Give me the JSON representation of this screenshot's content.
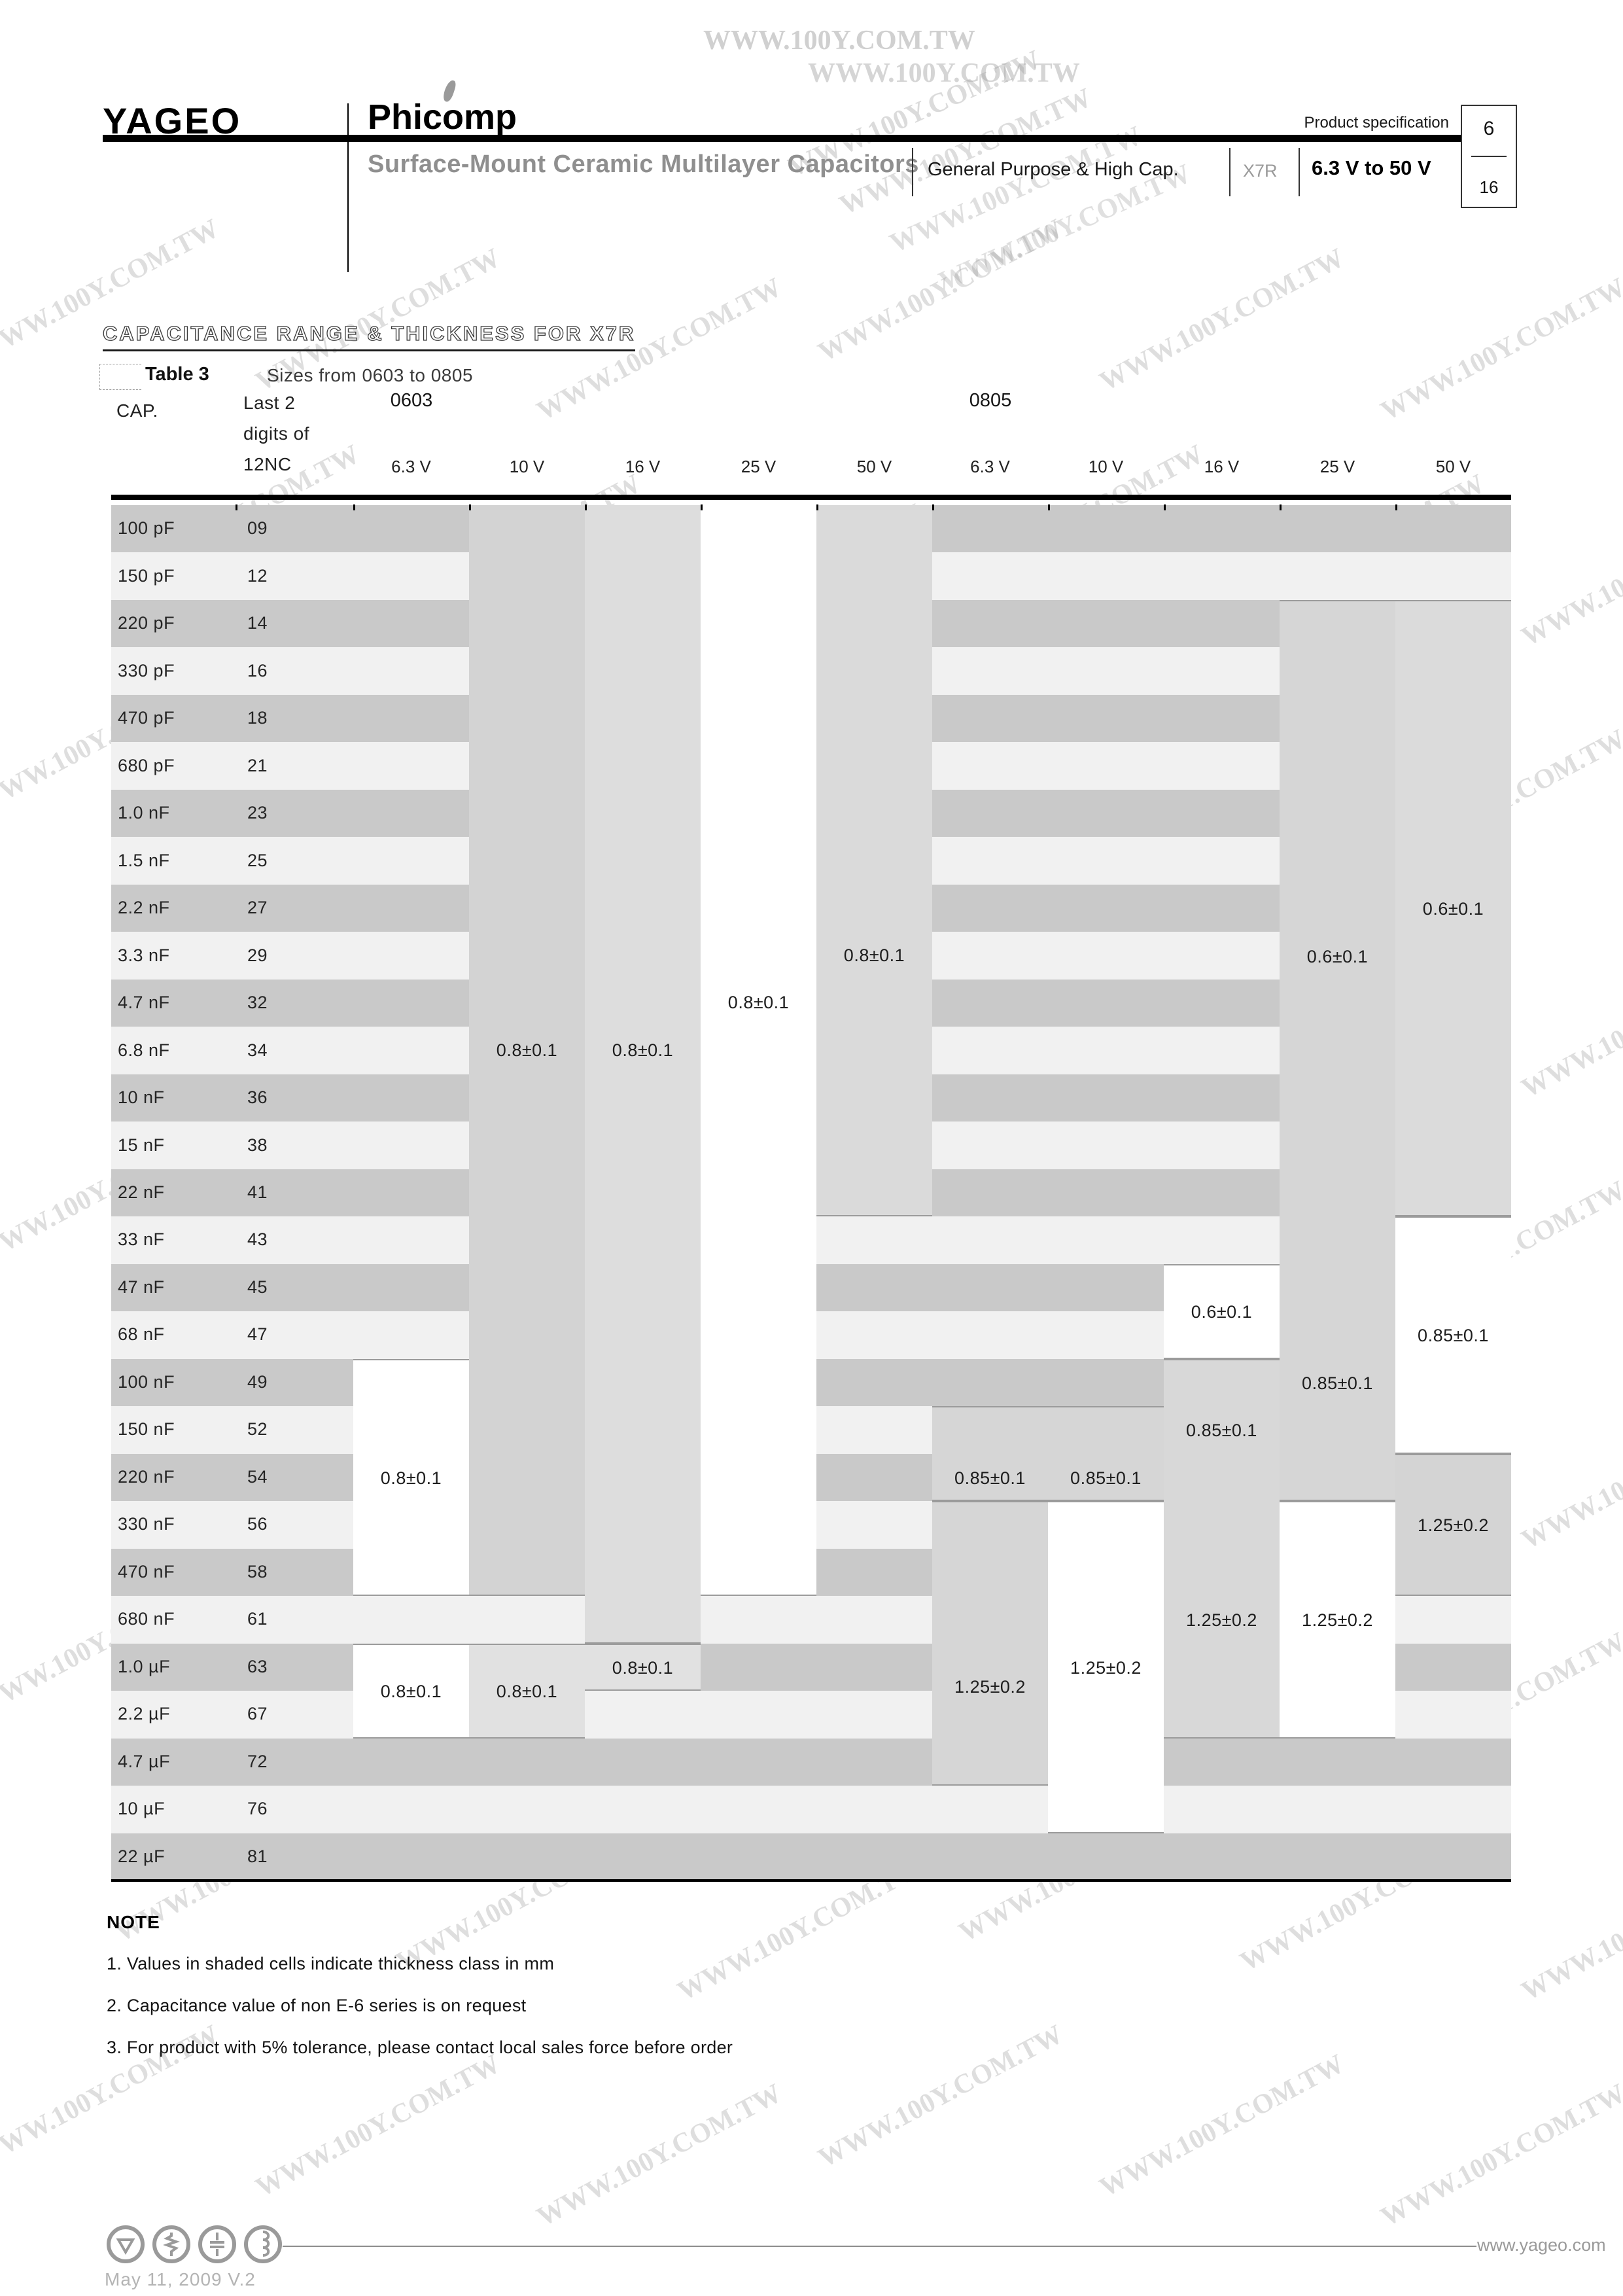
{
  "header": {
    "brand": "YAGEO",
    "brand2": "Phicomp",
    "product_spec": "Product specification",
    "page_number": "6",
    "page_total": "16",
    "title": "Surface-Mount Ceramic Multilayer Capacitors",
    "subtitle": "General Purpose & High Cap.",
    "series": "X7R",
    "voltage_range": "6.3 V to 50 V"
  },
  "section": {
    "heading": "CAPACITANCE RANGE & THICKNESS FOR X7R",
    "table_label": "Table 3",
    "table_caption": "Sizes from 0603 to 0805"
  },
  "table": {
    "col_cap_header": "CAP.",
    "col_code_header_lines": [
      "Last 2",
      "digits of",
      "12NC"
    ],
    "size_groups": [
      "0603",
      "0805"
    ],
    "voltages": [
      "6.3 V",
      "10 V",
      "16 V",
      "25 V",
      "50 V",
      "6.3 V",
      "10 V",
      "16 V",
      "25 V",
      "50 V"
    ],
    "rows": [
      {
        "cap": "100 pF",
        "code": "09"
      },
      {
        "cap": "150 pF",
        "code": "12"
      },
      {
        "cap": "220 pF",
        "code": "14"
      },
      {
        "cap": "330 pF",
        "code": "16"
      },
      {
        "cap": "470 pF",
        "code": "18"
      },
      {
        "cap": "680 pF",
        "code": "21"
      },
      {
        "cap": "1.0 nF",
        "code": "23"
      },
      {
        "cap": "1.5 nF",
        "code": "25"
      },
      {
        "cap": "2.2 nF",
        "code": "27"
      },
      {
        "cap": "3.3 nF",
        "code": "29"
      },
      {
        "cap": "4.7 nF",
        "code": "32"
      },
      {
        "cap": "6.8 nF",
        "code": "34"
      },
      {
        "cap": "10 nF",
        "code": "36"
      },
      {
        "cap": "15 nF",
        "code": "38"
      },
      {
        "cap": "22 nF",
        "code": "41"
      },
      {
        "cap": "33 nF",
        "code": "43"
      },
      {
        "cap": "47 nF",
        "code": "45"
      },
      {
        "cap": "68 nF",
        "code": "47"
      },
      {
        "cap": "100 nF",
        "code": "49"
      },
      {
        "cap": "150 nF",
        "code": "52"
      },
      {
        "cap": "220 nF",
        "code": "54"
      },
      {
        "cap": "330 nF",
        "code": "56"
      },
      {
        "cap": "470 nF",
        "code": "58"
      },
      {
        "cap": "680 nF",
        "code": "61"
      },
      {
        "cap": "1.0 µF",
        "code": "63"
      },
      {
        "cap": "2.2 µF",
        "code": "67"
      },
      {
        "cap": "4.7 µF",
        "code": "72"
      },
      {
        "cap": "10 µF",
        "code": "76"
      },
      {
        "cap": "22 µF",
        "code": "81"
      }
    ],
    "zebra_dark": "#c9c9c9",
    "zebra_light": "#f1f1f1",
    "border_color": "#9b9b9b",
    "blocks": [
      {
        "col": 0,
        "r0": 18,
        "r1": 22,
        "fill": "#ffffff",
        "labels": [
          {
            "text": "0.8±0.1"
          }
        ]
      },
      {
        "col": 0,
        "r0": 24,
        "r1": 25,
        "fill": "#ffffff",
        "labels": [
          {
            "text": "0.8±0.1"
          }
        ]
      },
      {
        "col": 1,
        "r0": 0,
        "r1": 22,
        "fill": "#d3d3d3",
        "labels": [
          {
            "text": "0.8±0.1",
            "row": 11
          }
        ]
      },
      {
        "col": 1,
        "r0": 24,
        "r1": 25,
        "fill": "#e1e1e1",
        "labels": [
          {
            "text": "0.8±0.1"
          }
        ]
      },
      {
        "col": 2,
        "r0": 0,
        "r1": 23,
        "fill": "#dddddd",
        "labels": [
          {
            "text": "0.8±0.1",
            "row": 11
          }
        ]
      },
      {
        "col": 2,
        "r0": 24,
        "r1": 24,
        "fill": "#e1e1e1",
        "labels": [
          {
            "text": "0.8±0.1"
          }
        ]
      },
      {
        "col": 3,
        "r0": 0,
        "r1": 22,
        "fill": "#ffffff",
        "labels": [
          {
            "text": "0.8±0.1",
            "row": 10
          }
        ]
      },
      {
        "col": 4,
        "r0": 0,
        "r1": 14,
        "fill": "#dadada",
        "labels": [
          {
            "text": "0.8±0.1",
            "row": 9
          }
        ]
      },
      {
        "col": 5,
        "r0": 19,
        "r1": 20,
        "fill": "#d6d6d6",
        "labels": [
          {
            "text": "0.85±0.1",
            "row": 20
          }
        ]
      },
      {
        "col": 5,
        "r0": 21,
        "r1": 26,
        "fill": "#d6d6d6",
        "labels": [
          {
            "text": "1.25±0.2",
            "row": 24.4
          }
        ]
      },
      {
        "col": 6,
        "r0": 19,
        "r1": 20,
        "fill": "#d6d6d6",
        "labels": [
          {
            "text": "0.85±0.1",
            "row": 20
          }
        ]
      },
      {
        "col": 6,
        "r0": 21,
        "r1": 27,
        "fill": "#ffffff",
        "labels": [
          {
            "text": "1.25±0.2",
            "row": 24
          }
        ]
      },
      {
        "col": 7,
        "r0": 16,
        "r1": 17,
        "fill": "#ffffff",
        "labels": [
          {
            "text": "0.6±0.1"
          }
        ]
      },
      {
        "col": 7,
        "r0": 18,
        "r1": 25,
        "fill": "#d8d8d8",
        "labels": [
          {
            "text": "0.85±0.1",
            "row": 19
          },
          {
            "text": "1.25±0.2",
            "row": 23
          }
        ]
      },
      {
        "col": 8,
        "r0": 2,
        "r1": 20,
        "fill": "#d6d6d6",
        "labels": [
          {
            "text": "0.6±0.1",
            "row": 9
          },
          {
            "text": "0.85±0.1",
            "row": 18
          }
        ]
      },
      {
        "col": 8,
        "r0": 21,
        "r1": 25,
        "fill": "#ffffff",
        "labels": [
          {
            "text": "1.25±0.2",
            "row": 23
          }
        ]
      },
      {
        "col": 9,
        "r0": 2,
        "r1": 14,
        "fill": "#dbdbdb",
        "labels": [
          {
            "text": "0.6±0.1",
            "row": 8
          }
        ]
      },
      {
        "col": 9,
        "r0": 15,
        "r1": 19,
        "fill": "#ffffff",
        "labels": [
          {
            "text": "0.85±0.1",
            "row": 17
          }
        ]
      },
      {
        "col": 9,
        "r0": 20,
        "r1": 22,
        "fill": "#d4d4d4",
        "labels": [
          {
            "text": "1.25±0.2"
          }
        ]
      }
    ]
  },
  "note": {
    "heading": "NOTE",
    "items": [
      "1. Values in shaded cells indicate thickness class in mm",
      "2. Capacitance value of non E-6 series is on request",
      "3. For product with 5% tolerance, please contact local sales force before order"
    ]
  },
  "footer": {
    "date": "May 11, 2009 V.2",
    "website": "www.yageo.com",
    "icons": [
      "triangle-icon",
      "resistor-icon",
      "capacitor-icon",
      "inductor-icon"
    ]
  },
  "watermark": {
    "text": "WWW.100Y.COM.TW"
  }
}
